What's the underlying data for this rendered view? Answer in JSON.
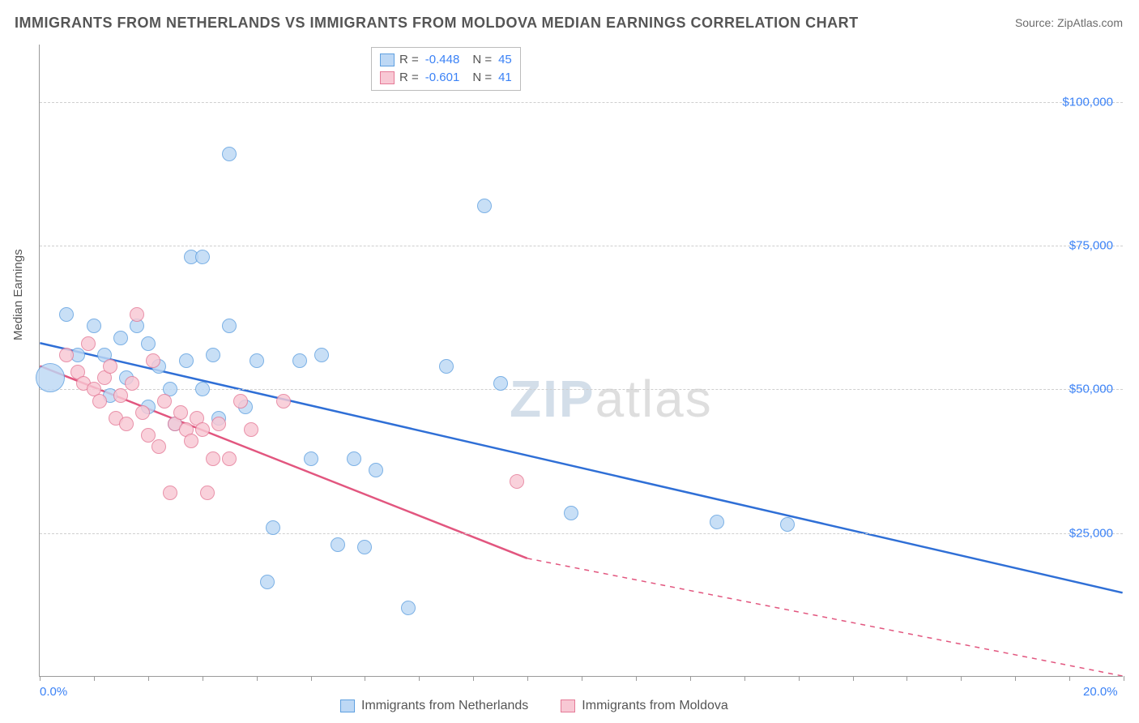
{
  "title": "IMMIGRANTS FROM NETHERLANDS VS IMMIGRANTS FROM MOLDOVA MEDIAN EARNINGS CORRELATION CHART",
  "source": "Source: ZipAtlas.com",
  "yaxis_title": "Median Earnings",
  "watermark_bold": "ZIP",
  "watermark_thin": "atlas",
  "chart": {
    "type": "scatter",
    "xlim": [
      0,
      20
    ],
    "ylim": [
      0,
      110000
    ],
    "x_ticks_minor": [
      0,
      1,
      2,
      3,
      4,
      5,
      6,
      7,
      8,
      9,
      10,
      11,
      12,
      13,
      14,
      15,
      16,
      17,
      18,
      19,
      20
    ],
    "y_grid": [
      25000,
      50000,
      75000,
      100000
    ],
    "y_tick_labels": {
      "25000": "$25,000",
      "50000": "$50,000",
      "75000": "$75,000",
      "100000": "$100,000"
    },
    "x_tick_labels": {
      "0": "0.0%",
      "20": "20.0%"
    },
    "background_color": "#ffffff",
    "grid_color": "#cfcfcf",
    "axis_color": "#9a9a9a",
    "tick_label_color": "#3b82f6",
    "marker_radius": 9,
    "marker_stroke_width": 1.5,
    "series": [
      {
        "name": "Immigrants from Netherlands",
        "fill": "#bdd8f5",
        "stroke": "#5fa0e0",
        "R": "-0.448",
        "N": "45",
        "trend": {
          "x1": 0,
          "y1": 58000,
          "x2": 20,
          "y2": 14500,
          "color": "#2f6fd6",
          "width": 2.5,
          "dash": "none"
        },
        "points": [
          {
            "x": 0.2,
            "y": 52000,
            "r": 18
          },
          {
            "x": 0.5,
            "y": 63000
          },
          {
            "x": 0.7,
            "y": 56000
          },
          {
            "x": 1.0,
            "y": 61000
          },
          {
            "x": 1.2,
            "y": 56000
          },
          {
            "x": 1.3,
            "y": 49000
          },
          {
            "x": 1.5,
            "y": 59000
          },
          {
            "x": 1.6,
            "y": 52000
          },
          {
            "x": 1.8,
            "y": 61000
          },
          {
            "x": 2.0,
            "y": 47000
          },
          {
            "x": 2.0,
            "y": 58000
          },
          {
            "x": 2.2,
            "y": 54000
          },
          {
            "x": 2.4,
            "y": 50000
          },
          {
            "x": 2.5,
            "y": 44000
          },
          {
            "x": 2.7,
            "y": 55000
          },
          {
            "x": 2.8,
            "y": 73000
          },
          {
            "x": 3.0,
            "y": 73000
          },
          {
            "x": 3.0,
            "y": 50000
          },
          {
            "x": 3.2,
            "y": 56000
          },
          {
            "x": 3.3,
            "y": 45000
          },
          {
            "x": 3.5,
            "y": 91000
          },
          {
            "x": 3.5,
            "y": 61000
          },
          {
            "x": 3.8,
            "y": 47000
          },
          {
            "x": 4.0,
            "y": 55000
          },
          {
            "x": 4.2,
            "y": 16500
          },
          {
            "x": 4.3,
            "y": 26000
          },
          {
            "x": 4.8,
            "y": 55000
          },
          {
            "x": 5.0,
            "y": 38000
          },
          {
            "x": 5.2,
            "y": 56000
          },
          {
            "x": 5.5,
            "y": 23000
          },
          {
            "x": 5.8,
            "y": 38000
          },
          {
            "x": 6.0,
            "y": 22500
          },
          {
            "x": 6.2,
            "y": 36000
          },
          {
            "x": 6.8,
            "y": 12000
          },
          {
            "x": 7.5,
            "y": 54000
          },
          {
            "x": 8.2,
            "y": 82000
          },
          {
            "x": 8.5,
            "y": 51000
          },
          {
            "x": 9.8,
            "y": 28500
          },
          {
            "x": 12.5,
            "y": 27000
          },
          {
            "x": 13.8,
            "y": 26500
          }
        ]
      },
      {
        "name": "Immigrants from Moldova",
        "fill": "#f8c8d4",
        "stroke": "#e57a97",
        "R": "-0.601",
        "N": "41",
        "trend": {
          "x1": 0,
          "y1": 54000,
          "x2": 9,
          "y2": 20500,
          "color": "#e2567f",
          "width": 2.5,
          "dash": "none",
          "extend_x2": 20,
          "extend_y2": -20000,
          "extend_dash": "6,6"
        },
        "points": [
          {
            "x": 0.5,
            "y": 56000
          },
          {
            "x": 0.7,
            "y": 53000
          },
          {
            "x": 0.8,
            "y": 51000
          },
          {
            "x": 0.9,
            "y": 58000
          },
          {
            "x": 1.0,
            "y": 50000
          },
          {
            "x": 1.1,
            "y": 48000
          },
          {
            "x": 1.2,
            "y": 52000
          },
          {
            "x": 1.3,
            "y": 54000
          },
          {
            "x": 1.4,
            "y": 45000
          },
          {
            "x": 1.5,
            "y": 49000
          },
          {
            "x": 1.6,
            "y": 44000
          },
          {
            "x": 1.7,
            "y": 51000
          },
          {
            "x": 1.8,
            "y": 63000
          },
          {
            "x": 1.9,
            "y": 46000
          },
          {
            "x": 2.0,
            "y": 42000
          },
          {
            "x": 2.1,
            "y": 55000
          },
          {
            "x": 2.2,
            "y": 40000
          },
          {
            "x": 2.3,
            "y": 48000
          },
          {
            "x": 2.4,
            "y": 32000
          },
          {
            "x": 2.5,
            "y": 44000
          },
          {
            "x": 2.6,
            "y": 46000
          },
          {
            "x": 2.7,
            "y": 43000
          },
          {
            "x": 2.8,
            "y": 41000
          },
          {
            "x": 2.9,
            "y": 45000
          },
          {
            "x": 3.0,
            "y": 43000
          },
          {
            "x": 3.1,
            "y": 32000
          },
          {
            "x": 3.2,
            "y": 38000
          },
          {
            "x": 3.3,
            "y": 44000
          },
          {
            "x": 3.5,
            "y": 38000
          },
          {
            "x": 3.7,
            "y": 48000
          },
          {
            "x": 3.9,
            "y": 43000
          },
          {
            "x": 4.5,
            "y": 48000
          },
          {
            "x": 8.8,
            "y": 34000
          }
        ]
      }
    ]
  },
  "legend_bottom": [
    {
      "label": "Immigrants from Netherlands",
      "fill": "#bdd8f5",
      "stroke": "#5fa0e0"
    },
    {
      "label": "Immigrants from Moldova",
      "fill": "#f8c8d4",
      "stroke": "#e57a97"
    }
  ]
}
